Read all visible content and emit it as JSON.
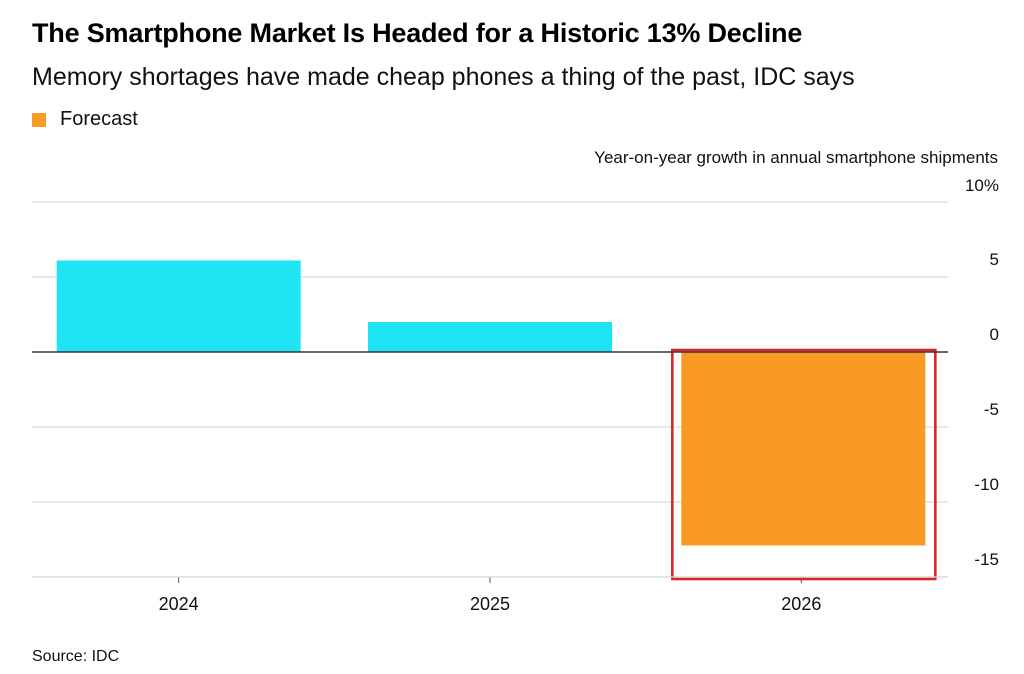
{
  "header": {
    "title": "The Smartphone Market Is Headed for a Historic 13% Decline",
    "subtitle": "Memory shortages have made cheap phones a thing of the past, IDC says"
  },
  "legend": {
    "label": "Forecast",
    "color": "#f99a25"
  },
  "footer": {
    "source": "Source: IDC"
  },
  "chart_data": {
    "type": "bar",
    "title": "The Smartphone Market Is Headed for a Historic 13% Decline",
    "subtitle": "Memory shortages have made cheap phones a thing of the past, IDC says",
    "ylabel": "Year-on-year growth in annual smartphone shipments",
    "xlabel": "",
    "categories": [
      "2024",
      "2025",
      "2026"
    ],
    "values": [
      6.1,
      2.0,
      -12.9
    ],
    "forecast": [
      false,
      false,
      true
    ],
    "ylim": [
      -15,
      10
    ],
    "yticks": [
      10,
      5,
      0,
      -5,
      -10,
      -15
    ],
    "ytick_labels": [
      "10%",
      "5",
      "0",
      "-5",
      "-10",
      "-15"
    ],
    "axis_position": "right",
    "grid": true,
    "legend_position": "top-left",
    "colors": {
      "actual": "#1ee3f2",
      "forecast": "#f99a25",
      "highlight": "#d9262c",
      "grid": "#d9d9d9",
      "zero_line": "#333333"
    }
  }
}
